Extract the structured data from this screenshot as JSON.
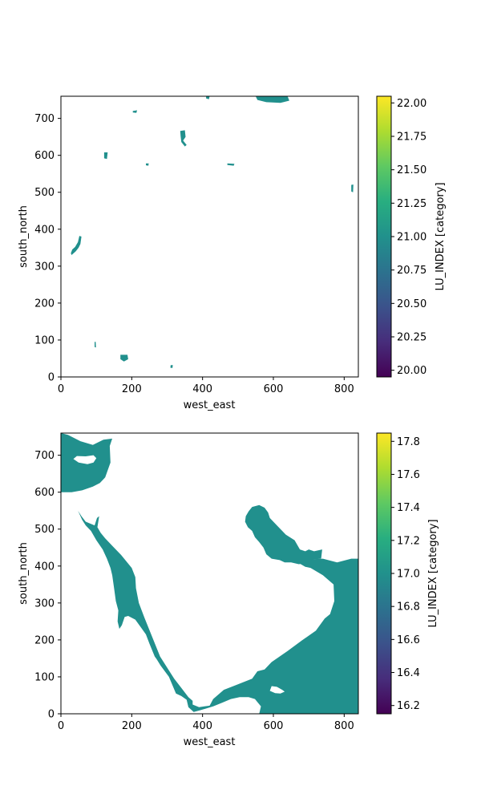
{
  "chart_data": [
    {
      "type": "heatmap",
      "xlabel": "west_east",
      "ylabel": "south_north",
      "xlim": [
        0,
        840
      ],
      "ylim": [
        0,
        760
      ],
      "xticks": [
        0,
        200,
        400,
        600,
        800
      ],
      "yticks": [
        0,
        100,
        200,
        300,
        400,
        500,
        600,
        700
      ],
      "value_shown": 21.0,
      "fill_color": "#21908d",
      "colorbar": {
        "label": "LU_INDEX [category]",
        "range": [
          19.95,
          22.05
        ],
        "ticks": [
          "20.00",
          "20.25",
          "20.50",
          "20.75",
          "21.00",
          "21.25",
          "21.50",
          "21.75",
          "22.00"
        ]
      },
      "regions": [
        {
          "poly": [
            [
              550,
              760
            ],
            [
              640,
              760
            ],
            [
              645,
              748
            ],
            [
              620,
              742
            ],
            [
              580,
              744
            ],
            [
              555,
              750
            ]
          ]
        },
        {
          "poly": [
            [
              410,
              760
            ],
            [
              420,
              760
            ],
            [
              418,
              752
            ],
            [
              410,
              754
            ]
          ]
        },
        {
          "poly": [
            [
              337,
              666
            ],
            [
              350,
              668
            ],
            [
              352,
              650
            ],
            [
              345,
              640
            ],
            [
              355,
              628
            ],
            [
              350,
              624
            ],
            [
              340,
              636
            ],
            [
              338,
              652
            ]
          ]
        },
        {
          "poly": [
            [
              122,
              608
            ],
            [
              132,
              608
            ],
            [
              130,
              590
            ],
            [
              122,
              592
            ]
          ]
        },
        {
          "poly": [
            [
              168,
              60
            ],
            [
              188,
              60
            ],
            [
              190,
              48
            ],
            [
              178,
              42
            ],
            [
              168,
              48
            ]
          ]
        },
        {
          "poly": [
            [
              30,
              330
            ],
            [
              42,
              340
            ],
            [
              50,
              350
            ],
            [
              55,
              360
            ],
            [
              58,
              380
            ],
            [
              52,
              382
            ],
            [
              48,
              365
            ],
            [
              40,
              352
            ],
            [
              32,
              345
            ],
            [
              28,
              335
            ]
          ]
        },
        {
          "poly": [
            [
              203,
              720
            ],
            [
              215,
              722
            ],
            [
              213,
              715
            ],
            [
              203,
              716
            ]
          ]
        },
        {
          "poly": [
            [
              470,
              578
            ],
            [
              490,
              577
            ],
            [
              488,
              572
            ],
            [
              470,
              574
            ]
          ]
        },
        {
          "poly": [
            [
              820,
              520
            ],
            [
              826,
              521
            ],
            [
              825,
              500
            ],
            [
              820,
              502
            ]
          ]
        },
        {
          "poly": [
            [
              310,
              32
            ],
            [
              316,
              32
            ],
            [
              315,
              24
            ],
            [
              309,
              25
            ]
          ]
        },
        {
          "poly": [
            [
              95,
              95
            ],
            [
              98,
              95
            ],
            [
              99,
              80
            ],
            [
              95,
              81
            ]
          ]
        },
        {
          "poly": [
            [
              240,
              578
            ],
            [
              248,
              578
            ],
            [
              247,
              572
            ],
            [
              240,
              573
            ]
          ]
        }
      ]
    },
    {
      "type": "heatmap",
      "xlabel": "west_east",
      "ylabel": "south_north",
      "xlim": [
        0,
        840
      ],
      "ylim": [
        0,
        760
      ],
      "xticks": [
        0,
        200,
        400,
        600,
        800
      ],
      "yticks": [
        0,
        100,
        200,
        300,
        400,
        500,
        600,
        700
      ],
      "value_shown": 17.0,
      "fill_color": "#21908d",
      "colorbar": {
        "label": "LU_INDEX [category]",
        "range": [
          16.15,
          17.85
        ],
        "ticks": [
          "16.2",
          "16.4",
          "16.6",
          "16.8",
          "17.0",
          "17.2",
          "17.4",
          "17.6",
          "17.8"
        ]
      },
      "regions": [
        {
          "poly": [
            [
              0,
              760
            ],
            [
              20,
              755
            ],
            [
              55,
              738
            ],
            [
              90,
              728
            ],
            [
              120,
              742
            ],
            [
              145,
              745
            ],
            [
              138,
              725
            ],
            [
              140,
              680
            ],
            [
              125,
              640
            ],
            [
              110,
              625
            ],
            [
              90,
              615
            ],
            [
              60,
              605
            ],
            [
              30,
              600
            ],
            [
              0,
              600
            ]
          ],
          "hole": [
            [
              35,
              690
            ],
            [
              50,
              680
            ],
            [
              75,
              676
            ],
            [
              92,
              680
            ],
            [
              100,
              692
            ],
            [
              92,
              700
            ],
            [
              70,
              697
            ],
            [
              45,
              698
            ],
            [
              35,
              690
            ]
          ]
        },
        {
          "poly": [
            [
              48,
              550
            ],
            [
              58,
              535
            ],
            [
              70,
              520
            ],
            [
              95,
              510
            ],
            [
              102,
              530
            ],
            [
              108,
              535
            ],
            [
              103,
              505
            ],
            [
              112,
              490
            ],
            [
              125,
              475
            ],
            [
              145,
              455
            ],
            [
              170,
              430
            ],
            [
              200,
              395
            ],
            [
              210,
              370
            ],
            [
              212,
              340
            ],
            [
              220,
              300
            ],
            [
              236,
              260
            ],
            [
              280,
              155
            ],
            [
              320,
              95
            ],
            [
              340,
              70
            ],
            [
              360,
              45
            ],
            [
              372,
              35
            ],
            [
              372,
              25
            ],
            [
              390,
              18
            ],
            [
              420,
              22
            ],
            [
              430,
              40
            ],
            [
              460,
              65
            ],
            [
              495,
              78
            ],
            [
              540,
              95
            ],
            [
              555,
              115
            ],
            [
              575,
              120
            ],
            [
              595,
              140
            ],
            [
              640,
              170
            ],
            [
              680,
              198
            ],
            [
              720,
              225
            ],
            [
              745,
              258
            ],
            [
              760,
              270
            ],
            [
              772,
              305
            ],
            [
              770,
              350
            ],
            [
              740,
              375
            ],
            [
              705,
              395
            ],
            [
              690,
              398
            ],
            [
              665,
              412
            ],
            [
              700,
              418
            ],
            [
              740,
              420
            ],
            [
              780,
              410
            ],
            [
              820,
              420
            ],
            [
              840,
              420
            ],
            [
              840,
              0
            ],
            [
              560,
              0
            ],
            [
              565,
              20
            ],
            [
              548,
              40
            ],
            [
              530,
              45
            ],
            [
              505,
              45
            ],
            [
              480,
              40
            ],
            [
              455,
              30
            ],
            [
              430,
              20
            ],
            [
              395,
              10
            ],
            [
              375,
              5
            ],
            [
              360,
              18
            ],
            [
              355,
              38
            ],
            [
              340,
              48
            ],
            [
              325,
              55
            ],
            [
              305,
              100
            ],
            [
              282,
              130
            ],
            [
              270,
              148
            ],
            [
              265,
              155
            ],
            [
              250,
              190
            ],
            [
              240,
              215
            ],
            [
              225,
              235
            ],
            [
              210,
              255
            ],
            [
              190,
              265
            ],
            [
              180,
              262
            ],
            [
              172,
              240
            ],
            [
              165,
              230
            ],
            [
              160,
              250
            ],
            [
              162,
              280
            ],
            [
              155,
              305
            ],
            [
              150,
              340
            ],
            [
              145,
              375
            ],
            [
              140,
              395
            ],
            [
              130,
              420
            ],
            [
              118,
              445
            ],
            [
              100,
              470
            ],
            [
              85,
              495
            ],
            [
              70,
              510
            ],
            [
              60,
              525
            ]
          ],
          "hole": [
            [
              595,
              75
            ],
            [
              610,
              73
            ],
            [
              625,
              65
            ],
            [
              632,
              60
            ],
            [
              620,
              55
            ],
            [
              605,
              56
            ],
            [
              590,
              62
            ],
            [
              595,
              75
            ]
          ]
        },
        {
          "poly": [
            [
              540,
              560
            ],
            [
              560,
              565
            ],
            [
              575,
              558
            ],
            [
              585,
              545
            ],
            [
              590,
              530
            ],
            [
              600,
              520
            ],
            [
              615,
              505
            ],
            [
              635,
              485
            ],
            [
              660,
              470
            ],
            [
              675,
              445
            ],
            [
              690,
              440
            ],
            [
              700,
              445
            ],
            [
              715,
              440
            ],
            [
              738,
              445
            ],
            [
              735,
              420
            ],
            [
              712,
              418
            ],
            [
              690,
              408
            ],
            [
              672,
              405
            ],
            [
              650,
              410
            ],
            [
              632,
              410
            ],
            [
              618,
              416
            ],
            [
              595,
              420
            ],
            [
              580,
              432
            ],
            [
              572,
              450
            ],
            [
              560,
              465
            ],
            [
              548,
              478
            ],
            [
              540,
              495
            ],
            [
              528,
              505
            ],
            [
              520,
              520
            ],
            [
              522,
              535
            ],
            [
              530,
              548
            ]
          ]
        }
      ]
    }
  ]
}
